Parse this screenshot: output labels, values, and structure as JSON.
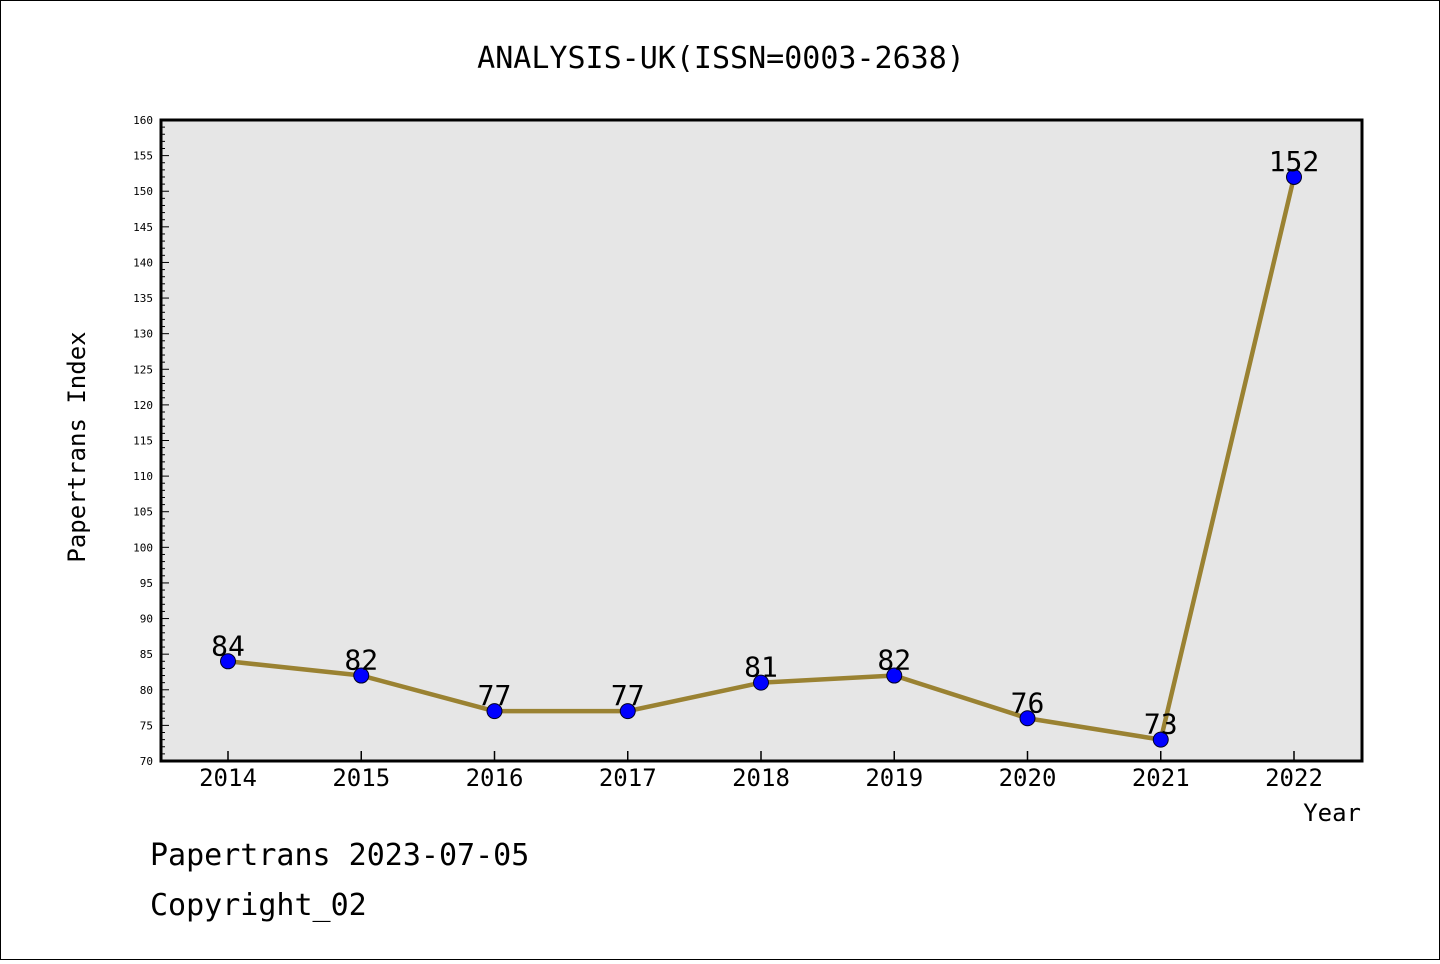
{
  "chart_data": {
    "type": "line",
    "title": "ANALYSIS-UK(ISSN=0003-2638)",
    "xlabel": "Year",
    "ylabel": "Papertrans Index",
    "x": [
      "2014",
      "2015",
      "2016",
      "2017",
      "2018",
      "2019",
      "2020",
      "2021",
      "2022"
    ],
    "series": [
      {
        "values": [
          84,
          82,
          77,
          77,
          81,
          82,
          76,
          73,
          152
        ]
      }
    ],
    "data_labels": [
      "84",
      "82",
      "77",
      "77",
      "81",
      "82",
      "76",
      "73",
      "152"
    ],
    "ylim": [
      70,
      160
    ],
    "yticks": [
      "70",
      "75",
      "80",
      "85",
      "90",
      "95",
      "100",
      "105",
      "110",
      "115",
      "120",
      "125",
      "130",
      "135",
      "140",
      "145",
      "150",
      "155",
      "160"
    ],
    "grid": false,
    "legend": "none",
    "colors": {
      "line": "#9a8232",
      "marker": "#0000ff",
      "plot_bg": "#e6e6e6"
    }
  },
  "footer": {
    "date_line": "Papertrans 2023-07-05",
    "copyright": "Copyright_02"
  }
}
